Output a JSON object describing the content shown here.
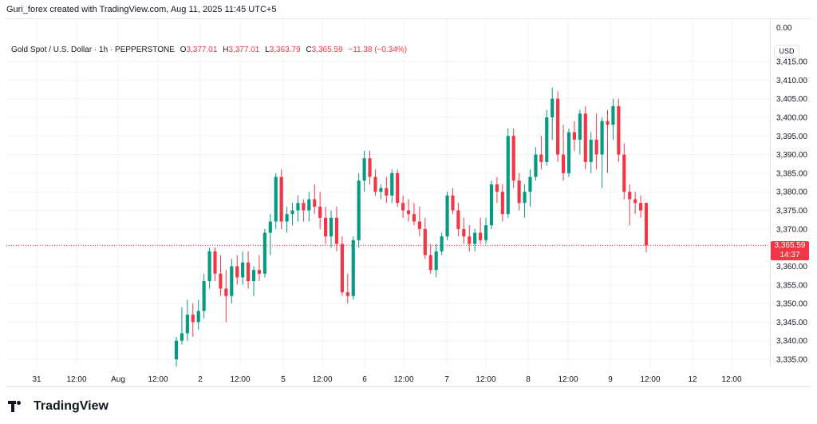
{
  "header": {
    "attribution": "Guri_forex created with TradingView.com, Aug 11, 2025 11:45 UTC+5"
  },
  "legend": {
    "symbol": "Gold Spot / U.S. Dollar · 1h · PEPPERSTONE",
    "o_key": "O",
    "o_val": "3,377.01",
    "h_key": "H",
    "h_val": "3,377.01",
    "l_key": "L",
    "l_val": "3,363.79",
    "c_key": "C",
    "c_val": "3,365.59",
    "change": "−11.38 (−0.34%)"
  },
  "price_axis": {
    "currency": "USD",
    "zero_label": "0.00",
    "last_price": "3,365.59",
    "countdown": "14:37"
  },
  "branding": {
    "logo_text": "TradingView"
  },
  "colors": {
    "up": "#089981",
    "down": "#f23645",
    "grid": "#f0f3fa",
    "last_line": "#f23645"
  },
  "chart_data": {
    "type": "candlestick",
    "title": "Gold Spot / U.S. Dollar · 1h · PEPPERSTONE",
    "ylim": [
      3333,
      3417
    ],
    "y_ticks": [
      "3,335.00",
      "3,340.00",
      "3,345.00",
      "3,350.00",
      "3,355.00",
      "3,360.00",
      "3,365.00",
      "3,370.00",
      "3,375.00",
      "3,380.00",
      "3,385.00",
      "3,390.00",
      "3,395.00",
      "3,400.00",
      "3,405.00",
      "3,410.00",
      "3,415.00"
    ],
    "x_ticks": [
      "31",
      "12:00",
      "Aug",
      "12:00",
      "2",
      "12:00",
      "5",
      "12:00",
      "6",
      "12:00",
      "7",
      "12:00",
      "8",
      "12:00",
      "9",
      "12:00",
      "12",
      "12:00"
    ],
    "last_price": 3365.59,
    "candles": [
      [
        3335,
        3341,
        3333,
        3340
      ],
      [
        3340,
        3349,
        3339,
        3342
      ],
      [
        3342,
        3351,
        3340,
        3347
      ],
      [
        3347,
        3350,
        3341,
        3345
      ],
      [
        3345,
        3351,
        3343,
        3348
      ],
      [
        3348,
        3358,
        3346,
        3356
      ],
      [
        3356,
        3365,
        3354,
        3364
      ],
      [
        3364,
        3365,
        3356,
        3358
      ],
      [
        3358,
        3363,
        3352,
        3354
      ],
      [
        3354,
        3359,
        3345,
        3352
      ],
      [
        3352,
        3362,
        3350,
        3360
      ],
      [
        3360,
        3363,
        3355,
        3357
      ],
      [
        3357,
        3364,
        3355,
        3361
      ],
      [
        3361,
        3364,
        3354,
        3356
      ],
      [
        3356,
        3360,
        3352,
        3359
      ],
      [
        3359,
        3363,
        3356,
        3358
      ],
      [
        3358,
        3370,
        3357,
        3369
      ],
      [
        3369,
        3374,
        3363,
        3372
      ],
      [
        3372,
        3385,
        3370,
        3384
      ],
      [
        3384,
        3386,
        3370,
        3372
      ],
      [
        3372,
        3376,
        3369,
        3374
      ],
      [
        3374,
        3377,
        3371,
        3375
      ],
      [
        3375,
        3379,
        3372,
        3377
      ],
      [
        3377,
        3378,
        3372,
        3375
      ],
      [
        3375,
        3380,
        3372,
        3378
      ],
      [
        3378,
        3382,
        3374,
        3376
      ],
      [
        3376,
        3380,
        3370,
        3373
      ],
      [
        3373,
        3376,
        3366,
        3368
      ],
      [
        3368,
        3375,
        3365,
        3373
      ],
      [
        3373,
        3376,
        3364,
        3366
      ],
      [
        3366,
        3368,
        3352,
        3353
      ],
      [
        3353,
        3358,
        3350,
        3352
      ],
      [
        3352,
        3368,
        3351,
        3367
      ],
      [
        3367,
        3385,
        3365,
        3383
      ],
      [
        3383,
        3391,
        3380,
        3389
      ],
      [
        3389,
        3391,
        3382,
        3384
      ],
      [
        3384,
        3386,
        3379,
        3380
      ],
      [
        3380,
        3382,
        3378,
        3381
      ],
      [
        3381,
        3384,
        3377,
        3379
      ],
      [
        3379,
        3386,
        3377,
        3385
      ],
      [
        3385,
        3386,
        3376,
        3377
      ],
      [
        3377,
        3379,
        3373,
        3375
      ],
      [
        3375,
        3378,
        3372,
        3374
      ],
      [
        3374,
        3377,
        3371,
        3372
      ],
      [
        3372,
        3376,
        3368,
        3370
      ],
      [
        3370,
        3373,
        3362,
        3363
      ],
      [
        3363,
        3366,
        3358,
        3359
      ],
      [
        3359,
        3366,
        3357,
        3364
      ],
      [
        3364,
        3369,
        3363,
        3368
      ],
      [
        3368,
        3380,
        3367,
        3379
      ],
      [
        3379,
        3381,
        3374,
        3375
      ],
      [
        3375,
        3377,
        3368,
        3370
      ],
      [
        3370,
        3373,
        3366,
        3368
      ],
      [
        3368,
        3371,
        3364,
        3366
      ],
      [
        3366,
        3370,
        3364,
        3369
      ],
      [
        3369,
        3373,
        3366,
        3367
      ],
      [
        3367,
        3373,
        3366,
        3371
      ],
      [
        3371,
        3383,
        3370,
        3382
      ],
      [
        3382,
        3384,
        3377,
        3380
      ],
      [
        3380,
        3382,
        3372,
        3374
      ],
      [
        3374,
        3397,
        3373,
        3395
      ],
      [
        3395,
        3397,
        3381,
        3383
      ],
      [
        3383,
        3385,
        3375,
        3377
      ],
      [
        3377,
        3382,
        3373,
        3380
      ],
      [
        3380,
        3386,
        3376,
        3384
      ],
      [
        3384,
        3392,
        3383,
        3390
      ],
      [
        3390,
        3395,
        3386,
        3388
      ],
      [
        3388,
        3402,
        3387,
        3400
      ],
      [
        3400,
        3408,
        3394,
        3405
      ],
      [
        3405,
        3407,
        3388,
        3390
      ],
      [
        3390,
        3398,
        3383,
        3385
      ],
      [
        3385,
        3397,
        3384,
        3396
      ],
      [
        3396,
        3399,
        3391,
        3394
      ],
      [
        3394,
        3402,
        3390,
        3401
      ],
      [
        3401,
        3403,
        3386,
        3388
      ],
      [
        3388,
        3396,
        3385,
        3394
      ],
      [
        3394,
        3401,
        3386,
        3390
      ],
      [
        3390,
        3400,
        3381,
        3399
      ],
      [
        3399,
        3402,
        3385,
        3398
      ],
      [
        3398,
        3405,
        3394,
        3403
      ],
      [
        3403,
        3405,
        3388,
        3390
      ],
      [
        3390,
        3393,
        3378,
        3380
      ],
      [
        3380,
        3382,
        3371,
        3378
      ],
      [
        3378,
        3380,
        3374,
        3377
      ],
      [
        3377,
        3379,
        3373,
        3375
      ],
      [
        3377,
        3377.01,
        3363.79,
        3365.59
      ]
    ]
  }
}
